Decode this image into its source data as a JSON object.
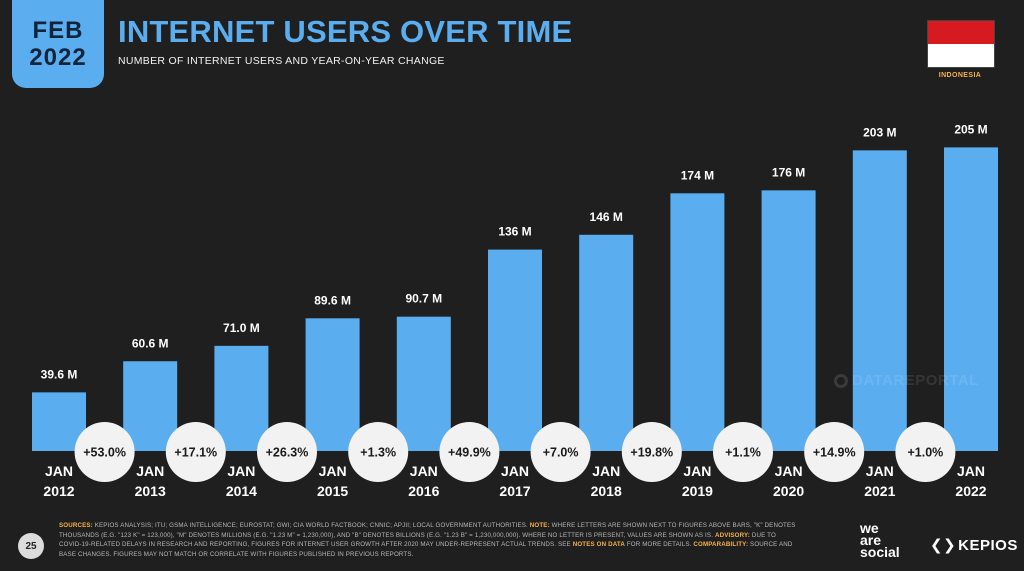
{
  "header": {
    "month": "FEB",
    "year": "2022",
    "title": "INTERNET USERS OVER TIME",
    "subtitle": "NUMBER OF INTERNET USERS AND YEAR-ON-YEAR CHANGE",
    "country": "INDONESIA"
  },
  "colors": {
    "accent": "#5aaef0",
    "background": "#1f1f1f",
    "highlight": "#f5b24a",
    "flag_red": "#d71920",
    "flag_white": "#ffffff"
  },
  "chart_data": {
    "type": "bar",
    "title": "INTERNET USERS OVER TIME",
    "categories": [
      "JAN 2012",
      "JAN 2013",
      "JAN 2014",
      "JAN 2015",
      "JAN 2016",
      "JAN 2017",
      "JAN 2018",
      "JAN 2019",
      "JAN 2020",
      "JAN 2021",
      "JAN 2022"
    ],
    "category_lines": [
      [
        "JAN",
        "2012"
      ],
      [
        "JAN",
        "2013"
      ],
      [
        "JAN",
        "2014"
      ],
      [
        "JAN",
        "2015"
      ],
      [
        "JAN",
        "2016"
      ],
      [
        "JAN",
        "2017"
      ],
      [
        "JAN",
        "2018"
      ],
      [
        "JAN",
        "2019"
      ],
      [
        "JAN",
        "2020"
      ],
      [
        "JAN",
        "2021"
      ],
      [
        "JAN",
        "2022"
      ]
    ],
    "values": [
      39.6,
      60.6,
      71.0,
      89.6,
      90.7,
      136,
      146,
      174,
      176,
      203,
      205
    ],
    "value_labels": [
      "39.6 M",
      "60.6 M",
      "71.0 M",
      "89.6 M",
      "90.7 M",
      "136 M",
      "146 M",
      "174 M",
      "176 M",
      "203 M",
      "205 M"
    ],
    "yoy_change": [
      "+53.0%",
      "+17.1%",
      "+26.3%",
      "+1.3%",
      "+49.9%",
      "+7.0%",
      "+19.8%",
      "+1.1%",
      "+14.9%",
      "+1.0%"
    ],
    "unit": "millions of users",
    "ylim": [
      0,
      210
    ],
    "grid": false,
    "legend": "none"
  },
  "watermark": "DATAREPORTAL",
  "footer": {
    "page_number": "25",
    "sources_label": "SOURCES:",
    "sources_text": " KEPIOS ANALYSIS; ITU; GSMA INTELLIGENCE; EUROSTAT; GWI; CIA WORLD FACTBOOK; CNNIC; APJII; LOCAL GOVERNMENT AUTHORITIES. ",
    "note_label": "NOTE:",
    "note_text": " WHERE LETTERS ARE SHOWN NEXT TO FIGURES ABOVE BARS, \"K\" DENOTES THOUSANDS (E.G. \"123 K\" = 123,000), \"M\" DENOTES MILLIONS (E.G. \"1.23 M\" = 1,230,000), AND \"B\" DENOTES BILLIONS (E.G. \"1.23 B\" = 1,230,000,000). WHERE NO LETTER IS PRESENT, VALUES ARE SHOWN AS IS. ",
    "advisory_label": "ADVISORY:",
    "advisory_text": " DUE TO COVID-19-RELATED DELAYS IN RESEARCH AND REPORTING, FIGURES FOR INTERNET USER GROWTH AFTER 2020 MAY UNDER-REPRESENT ACTUAL TRENDS. SEE ",
    "notes_link": "NOTES ON DATA",
    "notes_tail": " FOR MORE DETAILS. ",
    "comparability_label": "COMPARABILITY:",
    "comparability_text": " SOURCE AND BASE CHANGES. FIGURES MAY NOT MATCH OR CORRELATE WITH FIGURES PUBLISHED IN PREVIOUS REPORTS.",
    "logo_we": "we",
    "logo_are": "are",
    "logo_social": "social",
    "logo_kepios": "KEPIOS"
  }
}
